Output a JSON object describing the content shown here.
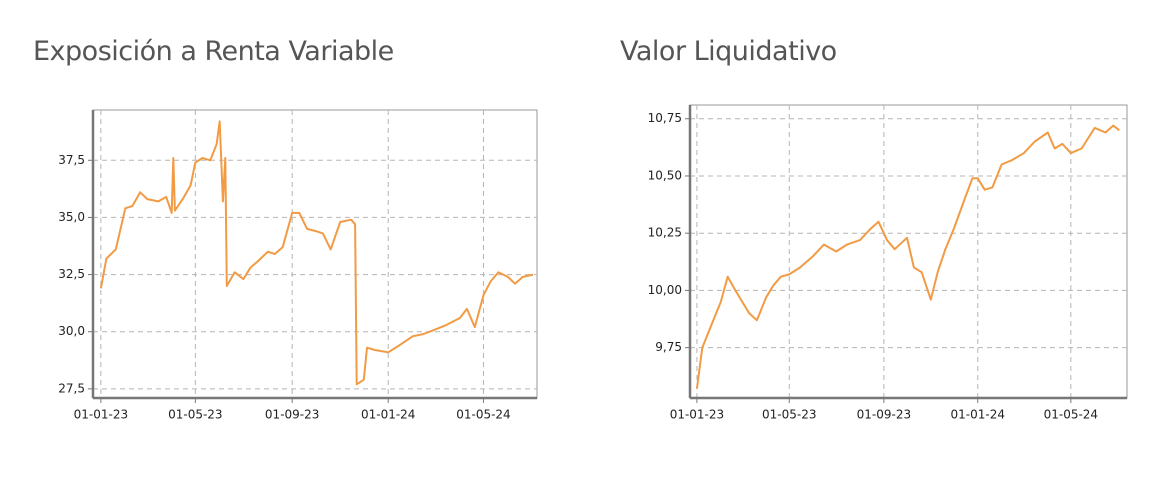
{
  "chart_data": [
    {
      "type": "line",
      "title": "Exposición a Renta Variable",
      "color": "#f29b45",
      "grid": true,
      "xlim": [
        "2022-12-22",
        "2024-07-08"
      ],
      "ylim": [
        27.1,
        39.7
      ],
      "xticks": [
        {
          "value": "2023-01-01",
          "label": "01-01-23"
        },
        {
          "value": "2023-05-01",
          "label": "01-05-23"
        },
        {
          "value": "2023-09-01",
          "label": "01-09-23"
        },
        {
          "value": "2024-01-01",
          "label": "01-01-24"
        },
        {
          "value": "2024-05-01",
          "label": "01-05-24"
        }
      ],
      "yticks": [
        {
          "value": 27.5,
          "label": "27,5"
        },
        {
          "value": 30,
          "label": "30,0"
        },
        {
          "value": 32.5,
          "label": "32,5"
        },
        {
          "value": 35,
          "label": "35,0"
        },
        {
          "value": 37.5,
          "label": "37,5"
        }
      ],
      "x": [
        "2023-01-01",
        "2023-01-08",
        "2023-01-20",
        "2023-02-01",
        "2023-02-10",
        "2023-02-20",
        "2023-03-01",
        "2023-03-15",
        "2023-03-25",
        "2023-04-01",
        "2023-04-03",
        "2023-04-05",
        "2023-04-15",
        "2023-04-25",
        "2023-05-01",
        "2023-05-10",
        "2023-05-20",
        "2023-05-28",
        "2023-06-01",
        "2023-06-05",
        "2023-06-08",
        "2023-06-10",
        "2023-06-20",
        "2023-07-01",
        "2023-07-10",
        "2023-07-20",
        "2023-08-01",
        "2023-08-10",
        "2023-08-20",
        "2023-09-01",
        "2023-09-10",
        "2023-09-20",
        "2023-10-01",
        "2023-10-10",
        "2023-10-20",
        "2023-11-01",
        "2023-11-15",
        "2023-11-20",
        "2023-11-22",
        "2023-12-01",
        "2023-12-05",
        "2023-12-15",
        "2024-01-01",
        "2024-01-15",
        "2024-02-01",
        "2024-02-15",
        "2024-03-01",
        "2024-03-15",
        "2024-04-01",
        "2024-04-10",
        "2024-04-20",
        "2024-05-01",
        "2024-05-10",
        "2024-05-20",
        "2024-06-01",
        "2024-06-10",
        "2024-06-20",
        "2024-07-03"
      ],
      "values": [
        31.9,
        33.2,
        33.6,
        35.4,
        35.5,
        36.1,
        35.8,
        35.7,
        35.9,
        35.2,
        37.6,
        35.3,
        35.8,
        36.4,
        37.4,
        37.6,
        37.5,
        38.2,
        39.2,
        35.7,
        37.6,
        32.0,
        32.6,
        32.3,
        32.8,
        33.1,
        33.5,
        33.4,
        33.7,
        35.2,
        35.2,
        34.5,
        34.4,
        34.3,
        33.6,
        34.8,
        34.9,
        34.7,
        27.7,
        27.9,
        29.3,
        29.2,
        29.1,
        29.4,
        29.8,
        29.9,
        30.1,
        30.3,
        30.6,
        31.0,
        30.2,
        31.6,
        32.2,
        32.6,
        32.4,
        32.1,
        32.4,
        32.5
      ]
    },
    {
      "type": "line",
      "title": "Valor Liquidativo",
      "color": "#f29b45",
      "grid": true,
      "xlim": [
        "2022-12-23",
        "2024-07-13"
      ],
      "ylim": [
        9.53,
        10.81
      ],
      "xticks": [
        {
          "value": "2023-01-01",
          "label": "01-01-23"
        },
        {
          "value": "2023-05-01",
          "label": "01-05-23"
        },
        {
          "value": "2023-09-01",
          "label": "01-09-23"
        },
        {
          "value": "2024-01-01",
          "label": "01-01-24"
        },
        {
          "value": "2024-05-01",
          "label": "01-05-24"
        }
      ],
      "yticks": [
        {
          "value": 9.75,
          "label": "9,75"
        },
        {
          "value": 10,
          "label": "10,00"
        },
        {
          "value": 10.25,
          "label": "10,25"
        },
        {
          "value": 10.5,
          "label": "10,50"
        },
        {
          "value": 10.75,
          "label": "10,75"
        }
      ],
      "x": [
        "2023-01-01",
        "2023-01-08",
        "2023-01-20",
        "2023-02-01",
        "2023-02-10",
        "2023-02-20",
        "2023-03-01",
        "2023-03-10",
        "2023-03-20",
        "2023-04-01",
        "2023-04-10",
        "2023-04-20",
        "2023-05-01",
        "2023-05-15",
        "2023-06-01",
        "2023-06-15",
        "2023-07-01",
        "2023-07-15",
        "2023-08-01",
        "2023-08-15",
        "2023-08-25",
        "2023-09-05",
        "2023-09-15",
        "2023-10-01",
        "2023-10-10",
        "2023-10-20",
        "2023-11-01",
        "2023-11-10",
        "2023-11-20",
        "2023-12-01",
        "2023-12-15",
        "2023-12-25",
        "2024-01-01",
        "2024-01-10",
        "2024-01-20",
        "2024-02-01",
        "2024-02-15",
        "2024-03-01",
        "2024-03-15",
        "2024-04-01",
        "2024-04-10",
        "2024-04-20",
        "2024-05-01",
        "2024-05-15",
        "2024-06-01",
        "2024-06-15",
        "2024-06-25",
        "2024-07-03"
      ],
      "values": [
        9.57,
        9.75,
        9.85,
        9.95,
        10.06,
        10.0,
        9.95,
        9.9,
        9.87,
        9.97,
        10.02,
        10.06,
        10.07,
        10.1,
        10.15,
        10.2,
        10.17,
        10.2,
        10.22,
        10.27,
        10.3,
        10.22,
        10.18,
        10.23,
        10.1,
        10.08,
        9.96,
        10.08,
        10.18,
        10.27,
        10.4,
        10.49,
        10.49,
        10.44,
        10.45,
        10.55,
        10.57,
        10.6,
        10.65,
        10.69,
        10.62,
        10.64,
        10.6,
        10.62,
        10.71,
        10.69,
        10.72,
        10.7
      ]
    }
  ]
}
